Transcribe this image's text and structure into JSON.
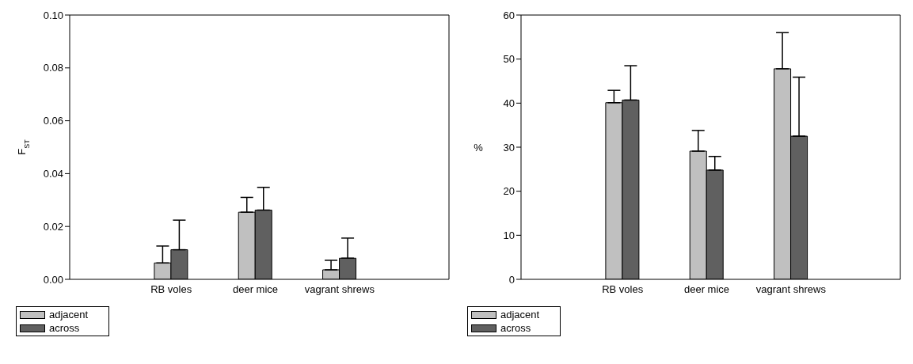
{
  "chart_data": [
    {
      "type": "bar",
      "ylabel": "F$_{ST}$",
      "categories": [
        "RB voles",
        "deer mice",
        "vagrant shrews"
      ],
      "series": [
        {
          "name": "adjacent",
          "color": "#c0c0c0",
          "values": [
            0.0062,
            0.0254,
            0.0036
          ],
          "errors": [
            [
              0.0062,
              0.0126
            ],
            [
              0.0254,
              0.031
            ],
            [
              0.0036,
              0.0072
            ]
          ]
        },
        {
          "name": "across",
          "color": "#606060",
          "values": [
            0.0112,
            0.0262,
            0.008
          ],
          "errors": [
            [
              0.0112,
              0.0224
            ],
            [
              0.0262,
              0.0348
            ],
            [
              0.008,
              0.0156
            ]
          ]
        }
      ],
      "ylim": [
        0,
        0.1
      ],
      "yticks": [
        {
          "value": 0,
          "label": "0.00"
        },
        {
          "value": 0.02,
          "label": "0.02"
        },
        {
          "value": 0.04,
          "label": "0.04"
        },
        {
          "value": 0.06,
          "label": "0.06"
        },
        {
          "value": 0.08,
          "label": "0.08"
        },
        {
          "value": 0.1,
          "label": "0.10"
        }
      ],
      "grid": false,
      "legend": "bottom left"
    },
    {
      "type": "bar",
      "ylabel": "%",
      "categories": [
        "RB voles",
        "deer mice",
        "vagrant shrews"
      ],
      "series": [
        {
          "name": "adjacent",
          "color": "#c0c0c0",
          "values": [
            40.1,
            29.1,
            47.8
          ],
          "errors": [
            [
              40.1,
              42.9
            ],
            [
              29.1,
              33.8
            ],
            [
              47.8,
              56
            ]
          ]
        },
        {
          "name": "across",
          "color": "#606060",
          "values": [
            40.7,
            24.8,
            32.5
          ],
          "errors": [
            [
              40.7,
              48.5
            ],
            [
              24.8,
              27.9
            ],
            [
              32.5,
              45.9
            ]
          ]
        }
      ],
      "ylim": [
        0,
        60
      ],
      "yticks": [
        0,
        10,
        20,
        30,
        40,
        50,
        60
      ],
      "grid": false,
      "legend": "bottom left"
    }
  ]
}
